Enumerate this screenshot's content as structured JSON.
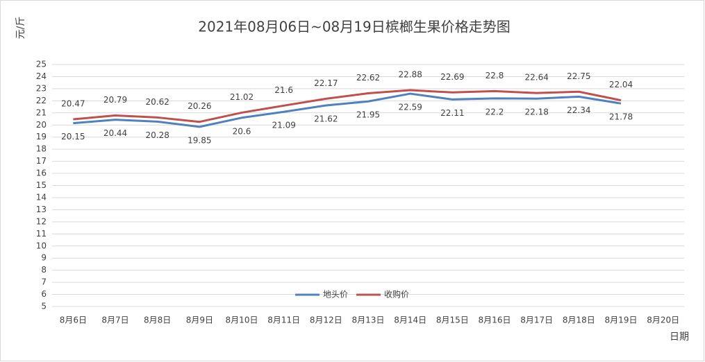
{
  "chart_data": {
    "type": "line",
    "title": "2021年08月06日~08月19日槟榔生果价格走势图",
    "y_label": "元/斤",
    "x_label": "日期",
    "categories": [
      "8月6日",
      "8月7日",
      "8月8日",
      "8月9日",
      "8月10日",
      "8月11日",
      "8月12日",
      "8月13日",
      "8月14日",
      "8月15日",
      "8月16日",
      "8月17日",
      "8月18日",
      "8月19日",
      "8月20日"
    ],
    "series": [
      {
        "name": "地头价",
        "color": "#4f81bd",
        "values": [
          20.15,
          20.44,
          20.28,
          19.85,
          20.6,
          21.09,
          21.62,
          21.95,
          22.59,
          22.11,
          22.2,
          22.18,
          22.34,
          21.78,
          null
        ]
      },
      {
        "name": "收购价",
        "color": "#c0504d",
        "values": [
          20.47,
          20.79,
          20.62,
          20.26,
          21.02,
          21.6,
          22.17,
          22.62,
          22.88,
          22.69,
          22.8,
          22.64,
          22.75,
          22.04,
          null
        ]
      }
    ],
    "ylim": [
      5,
      25
    ],
    "yticks": [
      5,
      6,
      7,
      8,
      9,
      10,
      11,
      12,
      13,
      14,
      15,
      16,
      17,
      18,
      19,
      20,
      21,
      22,
      23,
      24,
      25
    ],
    "grid": true,
    "legend": "bottom"
  }
}
